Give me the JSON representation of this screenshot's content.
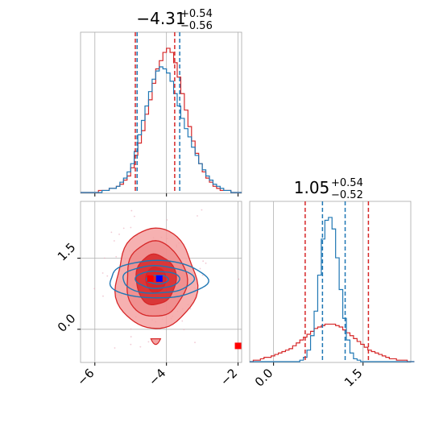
{
  "chart_data": [
    {
      "type": "histogram",
      "panel": "top-left",
      "title_main": "−4.31",
      "title_sup": "+0.54",
      "title_sub": "−0.56",
      "xlim": [
        -6.4,
        -1.9
      ],
      "xticks": [
        -6,
        -4,
        -2
      ],
      "grid": true,
      "series": [
        {
          "color": "#d62728",
          "x_start": -6.4,
          "x_step": 0.1,
          "values": [
            0,
            0,
            0,
            0,
            0,
            1,
            1,
            1,
            2,
            2,
            3,
            4,
            6,
            8,
            12,
            18,
            24,
            30,
            38,
            45,
            53,
            60,
            64,
            68,
            70,
            68,
            63,
            56,
            48,
            40,
            32,
            25,
            19,
            14,
            10,
            7,
            5,
            3,
            2,
            1,
            1,
            1,
            0,
            0,
            0
          ],
          "quantiles": [
            -4.87,
            -4.31,
            -3.77
          ]
        },
        {
          "color": "#1f77b4",
          "x_start": -6.4,
          "x_step": 0.1,
          "values": [
            0,
            0,
            0,
            0,
            0,
            0,
            1,
            1,
            2,
            2,
            3,
            5,
            7,
            10,
            14,
            20,
            28,
            35,
            42,
            49,
            55,
            59,
            61,
            60,
            58,
            54,
            48,
            42,
            36,
            31,
            27,
            22,
            18,
            14,
            11,
            8,
            6,
            4,
            3,
            2,
            1,
            1,
            0,
            0,
            0
          ],
          "quantiles": [
            -4.82,
            -4.28,
            -3.63
          ]
        }
      ]
    },
    {
      "type": "histogram",
      "panel": "bottom-right",
      "title_main": "1.05",
      "title_sup": "+0.54",
      "title_sub": "−0.52",
      "xlim": [
        -0.4,
        2.3
      ],
      "xticks": [
        0.0,
        1.5
      ],
      "xtick_labels": [
        "0.0",
        "1.5"
      ],
      "grid": true,
      "series": [
        {
          "color": "#d62728",
          "x_start": -0.4,
          "x_step": 0.06,
          "values": [
            0,
            1,
            1,
            2,
            3,
            3,
            4,
            5,
            6,
            7,
            8,
            9,
            11,
            13,
            15,
            17,
            19,
            21,
            23,
            24,
            25,
            26,
            26,
            26,
            25,
            24,
            22,
            20,
            18,
            16,
            14,
            12,
            10,
            8,
            7,
            6,
            5,
            4,
            3,
            2,
            2,
            1,
            1,
            1,
            0,
            0
          ],
          "quantiles": [
            0.53,
            1.05,
            1.59
          ]
        },
        {
          "color": "#1f77b4",
          "x_start": -0.4,
          "x_step": 0.06,
          "values": [
            0,
            0,
            0,
            0,
            0,
            0,
            0,
            0,
            0,
            0,
            0,
            0,
            0,
            0,
            1,
            3,
            8,
            18,
            35,
            60,
            85,
            98,
            100,
            92,
            72,
            50,
            30,
            15,
            6,
            2,
            1,
            0,
            0,
            0,
            0,
            0,
            0,
            0,
            0,
            0,
            0,
            0,
            0,
            0,
            0,
            0
          ],
          "quantiles": [
            0.82,
            1.02,
            1.2
          ]
        }
      ]
    },
    {
      "type": "contour",
      "panel": "bottom-left",
      "xlim": [
        -6.4,
        -1.9
      ],
      "ylim": [
        -0.7,
        2.7
      ],
      "xticks": [
        -6,
        -4,
        -2
      ],
      "yticks": [
        0.0,
        1.5
      ],
      "xtick_labels": [
        "−6",
        "−4",
        "−2"
      ],
      "ytick_labels": [
        "0.0",
        "1.5"
      ],
      "grid": true,
      "red_distribution": {
        "center": [
          -4.3,
          1.05
        ],
        "sigma": [
          0.56,
          0.53
        ]
      },
      "blue_distribution": {
        "center": [
          -4.25,
          1.05
        ],
        "sigma": [
          0.62,
          0.18
        ]
      },
      "markers": [
        {
          "color": "#ff0000",
          "x": -4.45,
          "y": 1.07
        },
        {
          "color": "#0000ff",
          "x": -4.2,
          "y": 1.07
        },
        {
          "color": "#ff0000",
          "x": -2.0,
          "y": -0.35
        }
      ]
    }
  ],
  "axis_labels": {
    "x_left": [
      "−6",
      "−4",
      "−2"
    ],
    "y_left": [
      "0.0",
      "1.5"
    ],
    "x_right": [
      "0.0",
      "1.5"
    ]
  },
  "colors": {
    "red": "#d62728",
    "blue": "#1f77b4",
    "red_fill_light": "#f09a9a",
    "red_fill_dark": "#d62728"
  }
}
